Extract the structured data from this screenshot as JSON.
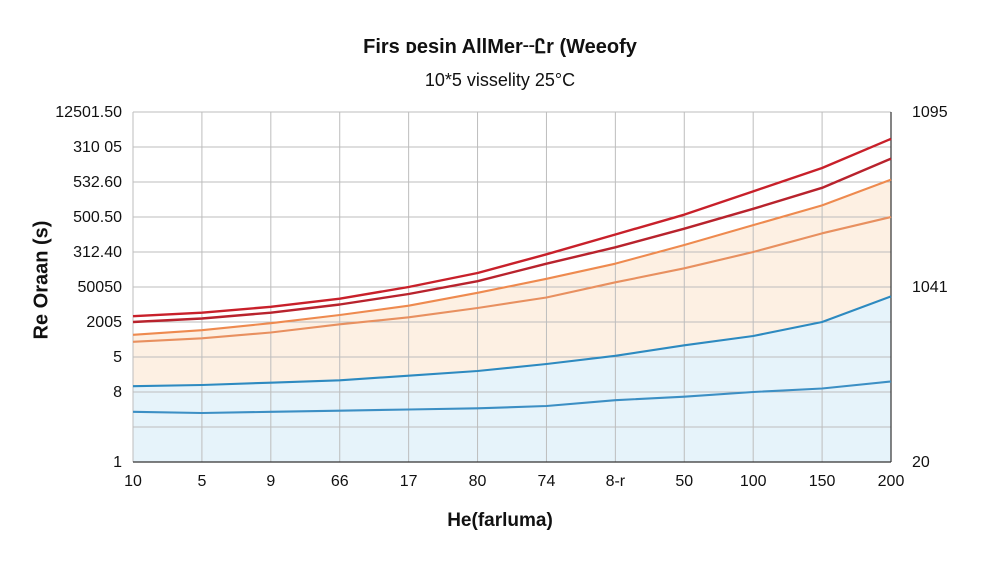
{
  "chart_data": {
    "type": "line",
    "title": "Firs ᴅesin AllMer╌Ꮭr (Weeofy",
    "subtitle": "10*5 visselity 25°C",
    "xlabel": "He(farluma)",
    "ylabel": "Re Oraan (s)",
    "x_tick_labels": [
      "10",
      "5",
      "9",
      "66",
      "17",
      "80",
      "74",
      "8-r",
      "50",
      "100",
      "150",
      "200"
    ],
    "y_tick_labels_left": [
      "12501.50",
      "310 05",
      "532.60",
      "500.50",
      "312.40",
      "50050",
      "2005",
      "5",
      "8",
      "",
      "1"
    ],
    "y_tick_labels_right": [
      "1095",
      "1041",
      "20"
    ],
    "grid": true,
    "x": [
      0,
      1,
      2,
      3,
      4,
      5,
      6,
      7,
      8,
      9,
      10,
      11
    ],
    "series": [
      {
        "color": "#c8202a",
        "values": [
          0.25,
          0.28,
          0.33,
          0.4,
          0.5,
          0.62,
          0.78,
          0.95,
          1.12,
          1.32,
          1.52,
          1.77
        ]
      },
      {
        "color": "#b8232d",
        "values": [
          0.2,
          0.23,
          0.28,
          0.35,
          0.44,
          0.55,
          0.7,
          0.84,
          1.0,
          1.17,
          1.35,
          1.6
        ]
      },
      {
        "color": "#ee8a4f",
        "values": [
          0.09,
          0.13,
          0.19,
          0.26,
          0.34,
          0.45,
          0.57,
          0.7,
          0.86,
          1.03,
          1.2,
          1.42
        ]
      },
      {
        "color": "#e89060",
        "values": [
          0.03,
          0.06,
          0.11,
          0.18,
          0.24,
          0.32,
          0.41,
          0.54,
          0.66,
          0.8,
          0.96,
          1.1
        ]
      },
      {
        "color": "#2d8ac0",
        "values": [
          -0.35,
          -0.34,
          -0.32,
          -0.3,
          -0.26,
          -0.22,
          -0.16,
          -0.09,
          0.0,
          0.08,
          0.2,
          0.42
        ]
      },
      {
        "color": "#3c8fc4",
        "values": [
          -0.57,
          -0.58,
          -0.57,
          -0.56,
          -0.55,
          -0.54,
          -0.52,
          -0.47,
          -0.44,
          -0.4,
          -0.37,
          -0.31
        ]
      }
    ]
  }
}
